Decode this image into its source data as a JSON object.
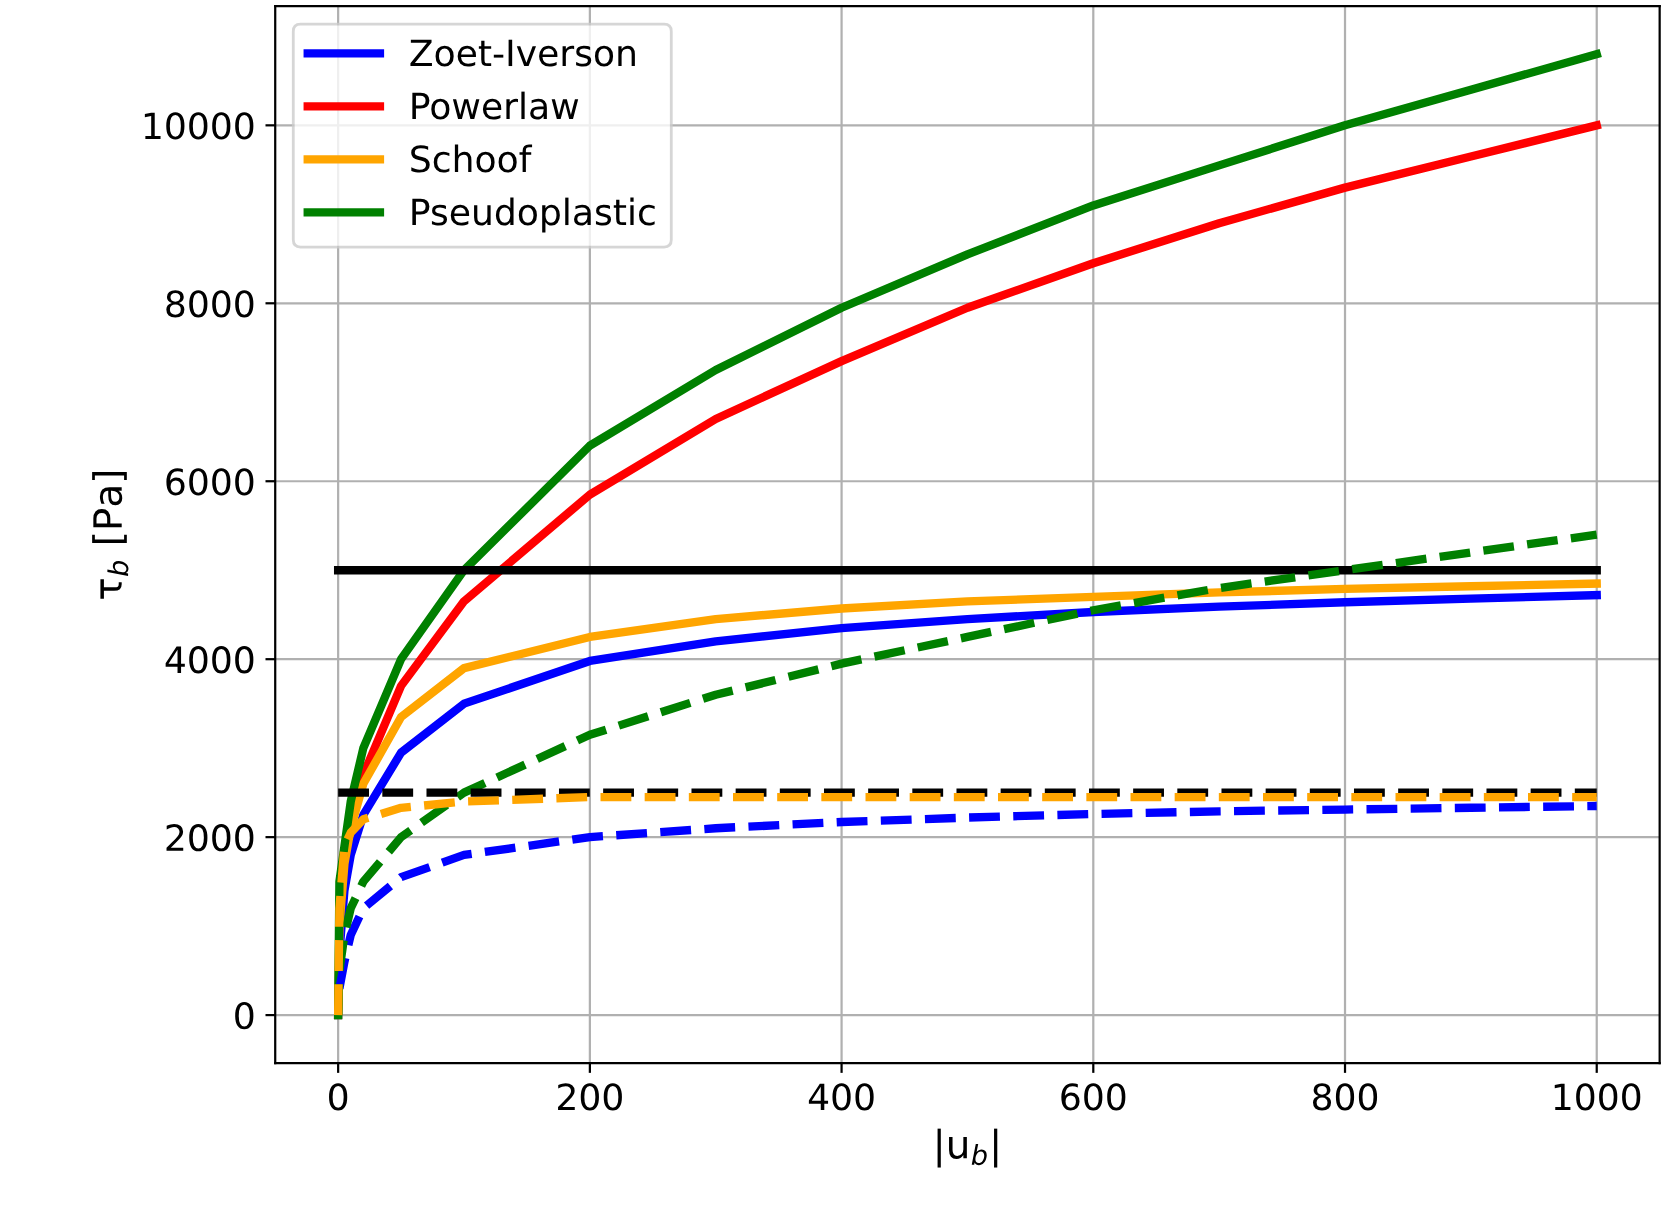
{
  "chart_data": {
    "type": "line",
    "xlabel": "|u$_{b}$|",
    "ylabel": "τ$_{b}$ [Pa]",
    "xlim": [
      -50,
      1050
    ],
    "ylim": [
      -540,
      11340
    ],
    "xticks": [
      0,
      200,
      400,
      600,
      800,
      1000
    ],
    "yticks": [
      0,
      2000,
      4000,
      6000,
      8000,
      10000
    ],
    "grid": true,
    "legend": "top left",
    "marker": "none",
    "x": [
      0,
      1,
      5,
      10,
      20,
      50,
      100,
      200,
      300,
      400,
      500,
      600,
      700,
      800,
      900,
      1000
    ],
    "series": [
      {
        "name": "Zoet-Iverson",
        "color": "#0000ff",
        "line_style": "solid",
        "values": [
          0,
          700,
          1400,
          1800,
          2250,
          2950,
          3500,
          3980,
          4200,
          4350,
          4450,
          4530,
          4590,
          4640,
          4680,
          4720
        ]
      },
      {
        "name": "Powerlaw",
        "color": "#ff0000",
        "line_style": "solid",
        "values": [
          null,
          null,
          null,
          2150,
          2700,
          3700,
          4650,
          5850,
          6700,
          7350,
          7950,
          8450,
          8900,
          9300,
          9650,
          10000
        ]
      },
      {
        "name": "Schoof",
        "color": "#ffa500",
        "line_style": "solid",
        "values": [
          0,
          1000,
          1700,
          2100,
          2600,
          3350,
          3900,
          4250,
          4450,
          4570,
          4650,
          4700,
          4750,
          4790,
          4820,
          4850
        ]
      },
      {
        "name": "Pseudoplastic",
        "color": "#008000",
        "line_style": "solid",
        "values": [
          0,
          1500,
          1900,
          2400,
          3000,
          4000,
          5000,
          6400,
          7250,
          7950,
          8550,
          9100,
          9550,
          10000,
          10400,
          10800
        ]
      },
      {
        "color": "#000000",
        "line_style": "solid",
        "values": [
          5000,
          5000,
          5000,
          5000,
          5000,
          5000,
          5000,
          5000,
          5000,
          5000,
          5000,
          5000,
          5000,
          5000,
          5000,
          5000
        ]
      },
      {
        "color": "#0000ff",
        "line_style": "dashed",
        "values": [
          null,
          300,
          600,
          900,
          1200,
          1550,
          1800,
          2000,
          2100,
          2170,
          2220,
          2260,
          2290,
          2310,
          2330,
          2350
        ]
      },
      {
        "color": "#008000",
        "line_style": "dashed",
        "values": [
          0,
          500,
          900,
          1200,
          1500,
          2000,
          2500,
          3150,
          3600,
          3950,
          4250,
          4550,
          4800,
          5000,
          5200,
          5400
        ]
      },
      {
        "color": "#000000",
        "line_style": "dashed",
        "values": [
          2500,
          2500,
          2500,
          2500,
          2500,
          2500,
          2500,
          2500,
          2500,
          2500,
          2500,
          2500,
          2500,
          2500,
          2500,
          2500
        ]
      },
      {
        "color": "#ffa500",
        "line_style": "dashed",
        "values": [
          0,
          1200,
          1900,
          2050,
          2200,
          2330,
          2400,
          2450,
          2450,
          2450,
          2450,
          2450,
          2450,
          2450,
          2450,
          2450
        ]
      }
    ]
  }
}
